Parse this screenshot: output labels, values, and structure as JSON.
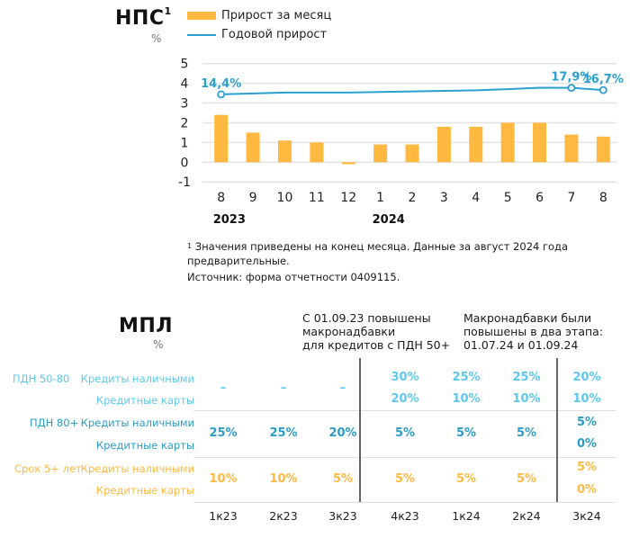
{
  "chart_data": {
    "type": "bar+line",
    "title": "НПС",
    "title_footnote_mark": "1",
    "unit": "%",
    "categories": [
      "8",
      "9",
      "10",
      "11",
      "12",
      "1",
      "2",
      "3",
      "4",
      "5",
      "6",
      "7",
      "8"
    ],
    "year_labels": [
      {
        "label": "2023",
        "at_category_index": 0
      },
      {
        "label": "2024",
        "at_category_index": 5
      }
    ],
    "yticks": [
      "5",
      "4",
      "3",
      "2",
      "1",
      "0",
      "-1"
    ],
    "ylim": [
      -1,
      5
    ],
    "grid": true,
    "legend_position": "top",
    "series": [
      {
        "name": "Прирост за месяц",
        "type": "bar",
        "color": "#ffb940",
        "values": [
          2.4,
          1.5,
          1.1,
          1.0,
          -0.1,
          0.9,
          0.9,
          1.8,
          1.8,
          2.0,
          2.0,
          1.4,
          1.3
        ]
      },
      {
        "name": "Годовой прирост",
        "type": "line",
        "color": "#2aa0cf",
        "values": [
          14.4,
          14.9,
          15.4,
          15.4,
          15.4,
          15.7,
          16.0,
          16.3,
          16.6,
          17.2,
          18.0,
          17.9,
          16.7
        ],
        "labeled_points": [
          {
            "index": 0,
            "label": "14,4%"
          },
          {
            "index": 11,
            "label": "17,9%"
          },
          {
            "index": 12,
            "label": "16,7%"
          }
        ]
      }
    ]
  },
  "footnotes": {
    "mark": "1",
    "note": "Значения приведены на конец месяца. Данные за август 2024 года предварительные.",
    "source": "Источник: форма отчетности 0409115."
  },
  "table": {
    "title": "МПЛ",
    "unit": "%",
    "annotation_1": [
      "С 01.09.23 повышены",
      "макронадбавки",
      "для кредитов с ПДН 50+"
    ],
    "annotation_2": [
      "Макронадбавки были",
      "повышены в два этапа:",
      "01.07.24 и 01.09.24"
    ],
    "quarters": [
      "1к23",
      "2к23",
      "3к23",
      "4к23",
      "1к24",
      "2к24",
      "3к24"
    ],
    "groups": [
      {
        "name": "ПДН 50-80",
        "color": "#5cc8f0",
        "rows": [
          "Кредиты наличными",
          "Кредитные карты"
        ],
        "merged": [
          "–",
          "–",
          "–"
        ],
        "split": [
          [
            "30%",
            "25%",
            "25%",
            "20%"
          ],
          [
            "20%",
            "10%",
            "10%",
            "10%"
          ]
        ]
      },
      {
        "name": "ПДН 80+",
        "color": "#2b9cc8",
        "rows": [
          "Кредиты наличными",
          "Кредитные карты"
        ],
        "merged": [
          "25%",
          "25%",
          "20%",
          "5%",
          "5%",
          "5%"
        ],
        "split": [
          [
            "5%"
          ],
          [
            "0%"
          ]
        ]
      },
      {
        "name": "Срок 5+ лет",
        "color": "#ffb940",
        "rows": [
          "Кредиты наличными",
          "Кредитные карты"
        ],
        "merged": [
          "10%",
          "10%",
          "5%",
          "5%",
          "5%",
          "5%"
        ],
        "split": [
          [
            "5%"
          ],
          [
            "0%"
          ]
        ]
      }
    ]
  }
}
